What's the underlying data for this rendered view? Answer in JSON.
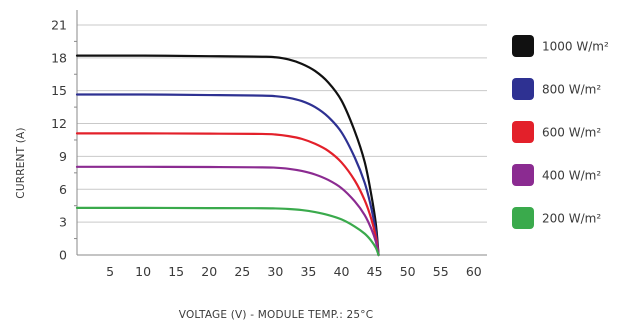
{
  "chart_data": {
    "type": "line",
    "xlabel": "VOLTAGE (V) - MODULE TEMP.: 25°C",
    "ylabel": "CURRENT (A)",
    "xlim": [
      0,
      62
    ],
    "ylim": [
      0,
      22
    ],
    "x_ticks": [
      5,
      10,
      15,
      20,
      25,
      30,
      35,
      40,
      45,
      50,
      55,
      60
    ],
    "y_ticks": [
      0,
      3,
      6,
      9,
      12,
      15,
      18,
      21
    ],
    "grid": "horizontal",
    "legend_position": "right",
    "series": [
      {
        "name": "1000 W/m²",
        "color": "#111111",
        "points": [
          [
            0,
            18.2
          ],
          [
            10,
            18.2
          ],
          [
            20,
            18.15
          ],
          [
            28,
            18.1
          ],
          [
            30,
            18.05
          ],
          [
            32,
            17.85
          ],
          [
            34,
            17.45
          ],
          [
            36,
            16.8
          ],
          [
            38,
            15.75
          ],
          [
            40,
            14.1
          ],
          [
            42,
            11.3
          ],
          [
            43.5,
            8.5
          ],
          [
            44.5,
            5.5
          ],
          [
            45.2,
            2.8
          ],
          [
            45.6,
            0
          ]
        ]
      },
      {
        "name": "800 W/m²",
        "color": "#2e3192",
        "points": [
          [
            0,
            14.65
          ],
          [
            10,
            14.65
          ],
          [
            20,
            14.6
          ],
          [
            28,
            14.55
          ],
          [
            30,
            14.5
          ],
          [
            32,
            14.35
          ],
          [
            34,
            14.05
          ],
          [
            36,
            13.5
          ],
          [
            38,
            12.6
          ],
          [
            40,
            11.2
          ],
          [
            42,
            8.9
          ],
          [
            43.5,
            6.6
          ],
          [
            44.5,
            4.3
          ],
          [
            45.2,
            2.1
          ],
          [
            45.6,
            0
          ]
        ]
      },
      {
        "name": "600 W/m²",
        "color": "#e3202a",
        "points": [
          [
            0,
            11.1
          ],
          [
            10,
            11.1
          ],
          [
            20,
            11.08
          ],
          [
            28,
            11.05
          ],
          [
            30,
            11.0
          ],
          [
            32,
            10.85
          ],
          [
            34,
            10.6
          ],
          [
            36,
            10.15
          ],
          [
            38,
            9.5
          ],
          [
            40,
            8.45
          ],
          [
            42,
            6.8
          ],
          [
            43.5,
            5.0
          ],
          [
            44.5,
            3.3
          ],
          [
            45.2,
            1.6
          ],
          [
            45.6,
            0
          ]
        ]
      },
      {
        "name": "400 W/m²",
        "color": "#8b2b91",
        "points": [
          [
            0,
            8.05
          ],
          [
            10,
            8.05
          ],
          [
            20,
            8.03
          ],
          [
            28,
            8.0
          ],
          [
            30,
            7.97
          ],
          [
            32,
            7.87
          ],
          [
            34,
            7.67
          ],
          [
            36,
            7.35
          ],
          [
            38,
            6.85
          ],
          [
            40,
            6.1
          ],
          [
            42,
            4.9
          ],
          [
            43.5,
            3.65
          ],
          [
            44.5,
            2.4
          ],
          [
            45.2,
            1.2
          ],
          [
            45.6,
            0
          ]
        ]
      },
      {
        "name": "200 W/m²",
        "color": "#3aaa4c",
        "points": [
          [
            0,
            4.3
          ],
          [
            10,
            4.3
          ],
          [
            20,
            4.28
          ],
          [
            28,
            4.27
          ],
          [
            30,
            4.25
          ],
          [
            32,
            4.2
          ],
          [
            34,
            4.1
          ],
          [
            36,
            3.92
          ],
          [
            38,
            3.65
          ],
          [
            40,
            3.25
          ],
          [
            42,
            2.6
          ],
          [
            43.5,
            1.95
          ],
          [
            44.5,
            1.3
          ],
          [
            45.2,
            0.65
          ],
          [
            45.6,
            0
          ]
        ]
      }
    ]
  }
}
